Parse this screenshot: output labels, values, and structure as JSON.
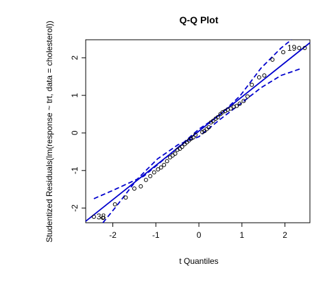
{
  "chart_data": {
    "type": "scatter",
    "title": "Q-Q Plot",
    "x_label": "t Quantiles",
    "y_label": "Studentized Residuals(lm(response ~ trt, data = cholesterol))",
    "xlim": [
      -2.63,
      2.58
    ],
    "ylim": [
      -2.39,
      2.48
    ],
    "xticks": [
      -2,
      -1,
      0,
      1,
      2
    ],
    "yticks": [
      -2,
      -1,
      0,
      1,
      2
    ],
    "point_color": "#000000",
    "line_color": "#0000cd",
    "series": [
      {
        "name": "Residuals",
        "x": [
          -2.44,
          -2.23,
          -1.95,
          -1.7,
          -1.5,
          -1.35,
          -1.23,
          -1.13,
          -1.04,
          -0.95,
          -0.88,
          -0.81,
          -0.74,
          -0.67,
          -0.61,
          -0.55,
          -0.5,
          -0.44,
          -0.39,
          -0.33,
          -0.28,
          -0.23,
          -0.18,
          -0.13,
          -0.08,
          0.08,
          0.13,
          0.18,
          0.23,
          0.28,
          0.33,
          0.39,
          0.44,
          0.5,
          0.55,
          0.61,
          0.67,
          0.74,
          0.81,
          0.88,
          0.95,
          1.04,
          1.13,
          1.23,
          1.4,
          1.52,
          1.71,
          1.96,
          2.33,
          2.46
        ],
        "values": [
          -2.23,
          -2.26,
          -1.9,
          -1.72,
          -1.48,
          -1.42,
          -1.25,
          -1.15,
          -1.05,
          -0.97,
          -0.92,
          -0.85,
          -0.75,
          -0.65,
          -0.6,
          -0.55,
          -0.45,
          -0.42,
          -0.37,
          -0.3,
          -0.25,
          -0.2,
          -0.15,
          -0.12,
          -0.05,
          0.02,
          0.05,
          0.1,
          0.15,
          0.28,
          0.32,
          0.38,
          0.42,
          0.5,
          0.55,
          0.58,
          0.62,
          0.65,
          0.7,
          0.72,
          0.78,
          0.85,
          0.97,
          1.28,
          1.48,
          1.53,
          1.95,
          2.15,
          2.26,
          2.26
        ]
      }
    ],
    "reference_line": {
      "x": [
        -2.63,
        2.58
      ],
      "values": [
        -2.35,
        2.4
      ]
    },
    "envelope_upper": {
      "x": [
        -2.44,
        -2,
        -1.28,
        -0.8,
        -0.48,
        0,
        0.48,
        0.96,
        1.44,
        1.91,
        2.15
      ],
      "values": [
        -1.75,
        -1.53,
        -1.15,
        -0.69,
        -0.38,
        0.1,
        0.47,
        0.99,
        1.72,
        2.26,
        2.48
      ]
    },
    "envelope_lower": {
      "x": [
        -2.23,
        -1.91,
        -1.44,
        -0.96,
        -0.48,
        0,
        0.48,
        0.96,
        1.44,
        1.91,
        2.39
      ],
      "values": [
        -2.39,
        -1.94,
        -1.24,
        -0.69,
        -0.31,
        -0.1,
        0.35,
        0.77,
        1.2,
        1.53,
        1.72
      ]
    },
    "annotations": [
      {
        "text": "19",
        "x": 2.33,
        "y": 2.26
      },
      {
        "text": "38",
        "x": -2.44,
        "y": -2.23
      }
    ]
  }
}
